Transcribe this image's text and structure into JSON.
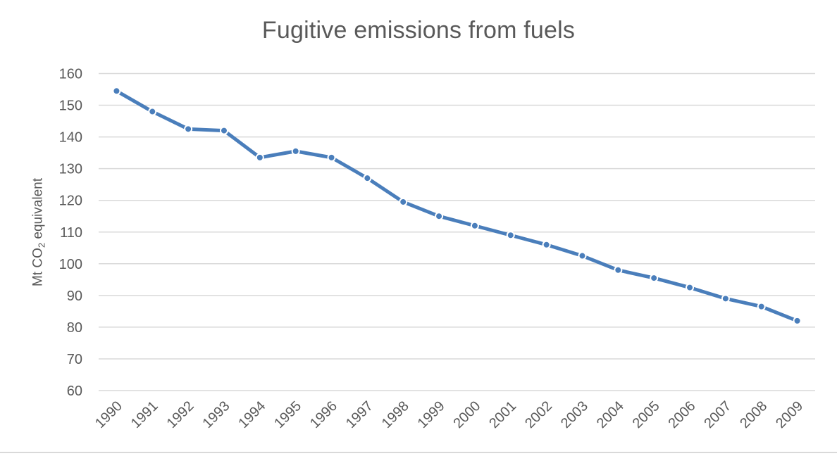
{
  "page": {
    "background_color": "#ffffff",
    "separator_color": "#d9d9d9"
  },
  "chart_data": {
    "type": "line",
    "title": "Fugitive emissions from fuels",
    "xlabel": "",
    "ylabel": "Mt CO2 equivalent",
    "ylabel_parts": {
      "prefix": "Mt CO",
      "subscript": "2",
      "suffix": " equivalent"
    },
    "categories": [
      "1990",
      "1991",
      "1992",
      "1993",
      "1994",
      "1995",
      "1996",
      "1997",
      "1998",
      "1999",
      "2000",
      "2001",
      "2002",
      "2003",
      "2004",
      "2005",
      "2006",
      "2007",
      "2008",
      "2009"
    ],
    "series": [
      {
        "name": "Fugitive emissions from fuels",
        "values": [
          154.5,
          148,
          142.5,
          142,
          133.5,
          135.5,
          133.5,
          127,
          119.5,
          115,
          112,
          109,
          106,
          102.5,
          98,
          95.5,
          92.5,
          89,
          86.5,
          82
        ]
      }
    ],
    "ylim": [
      60,
      160
    ],
    "yticks": [
      160,
      150,
      140,
      130,
      120,
      110,
      100,
      90,
      80,
      70,
      60
    ],
    "x_tick_rotation": -45,
    "grid": true,
    "legend_position": "none",
    "marker": "circle",
    "colors": {
      "line": "#4a7ebb",
      "marker_fill": "#4a7ebb",
      "marker_edge": "#ffffff",
      "gridline": "#d9d9d9",
      "text": "#595959"
    }
  }
}
